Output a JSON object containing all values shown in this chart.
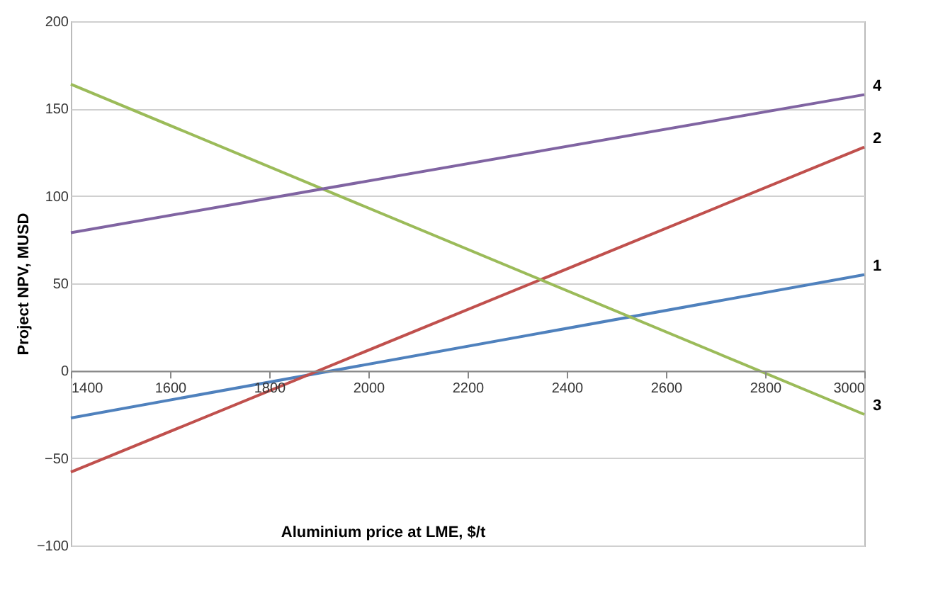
{
  "chart_data": {
    "type": "line",
    "xlabel": "Aluminium price at LME, $/t",
    "ylabel": "Project NPV, MUSD",
    "x": [
      1400,
      3000
    ],
    "series": [
      {
        "name": "1",
        "color": "#4f81bd",
        "values": [
          -27,
          55
        ]
      },
      {
        "name": "2",
        "color": "#c0504d",
        "values": [
          -58,
          128
        ]
      },
      {
        "name": "3",
        "color": "#9bbb59",
        "values": [
          164,
          -25
        ]
      },
      {
        "name": "4",
        "color": "#8064a2",
        "values": [
          79,
          158
        ]
      }
    ],
    "xlim": [
      1400,
      3000
    ],
    "xticks": [
      1400,
      1600,
      1800,
      2000,
      2200,
      2400,
      2600,
      2800,
      3000
    ],
    "ylim": [
      -100,
      200
    ],
    "yticks": [
      -100,
      -50,
      0,
      50,
      100,
      150,
      200
    ],
    "grid": "y",
    "legend": false
  }
}
